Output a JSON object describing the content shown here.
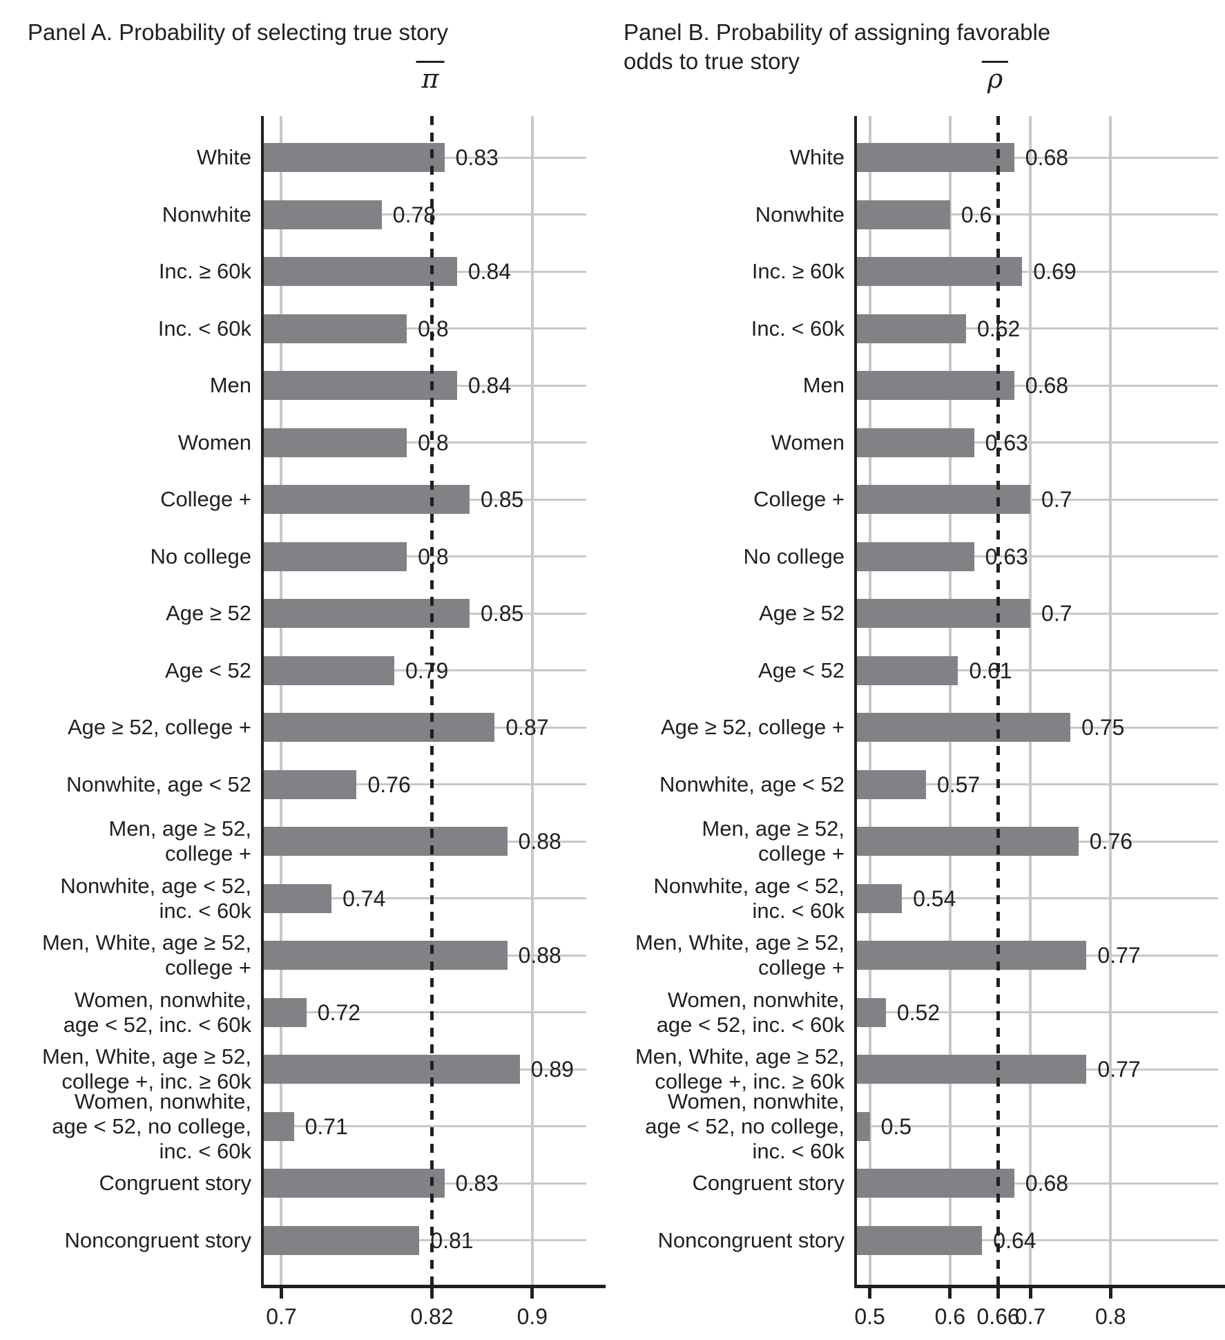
{
  "figure": {
    "panel_a_title": "Panel A. Probability of selecting true story",
    "panel_b_title": "Panel B. Probability of assigning favorable\nodds to true story",
    "pi_symbol": "π",
    "rho_symbol": "ρ"
  },
  "colors": {
    "bar": "#808285",
    "gridline": "#c7c8ca",
    "axis_text": "#231f20",
    "background": "#ffffff"
  },
  "chart_data": [
    {
      "type": "bar",
      "orientation": "horizontal",
      "title": "Panel A. Probability of selecting true story",
      "axis_symbol": "π",
      "axis_symbol_meaning": "mean probability, dashed reference line",
      "categories": [
        "White",
        "Nonwhite",
        "Inc. ≥ 60k",
        "Inc. < 60k",
        "Men",
        "Women",
        "College +",
        "No college",
        "Age ≥ 52",
        "Age < 52",
        "Age ≥ 52, college +",
        "Nonwhite, age < 52",
        "Men, age ≥ 52,\ncollege +",
        "Nonwhite, age < 52,\ninc. < 60k",
        "Men, White, age ≥ 52,\ncollege +",
        "Women, nonwhite,\nage < 52, inc. < 60k",
        "Men, White, age ≥ 52,\ncollege +, inc. ≥ 60k",
        "Women, nonwhite,\nage < 52, no college,\ninc. < 60k",
        "Congruent story",
        "Noncongruent story"
      ],
      "values": [
        0.83,
        0.78,
        0.84,
        0.8,
        0.84,
        0.8,
        0.85,
        0.8,
        0.85,
        0.79,
        0.87,
        0.76,
        0.88,
        0.74,
        0.88,
        0.72,
        0.89,
        0.71,
        0.83,
        0.81
      ],
      "value_labels": [
        "0.83",
        "0.78",
        "0.84",
        "0.8",
        "0.84",
        "0.8",
        "0.85",
        "0.8",
        "0.85",
        "0.79",
        "0.87",
        "0.76",
        "0.88",
        "0.74",
        "0.88",
        "0.72",
        "0.89",
        "0.71",
        "0.83",
        "0.81"
      ],
      "xticks": [
        {
          "value": 0.7,
          "label": "0.7"
        },
        {
          "value": 0.82,
          "label": "0.82"
        },
        {
          "value": 0.9,
          "label": "0.9"
        }
      ],
      "gridlines_x": [
        0.7,
        0.9
      ],
      "mean_line": 0.82,
      "xlim": [
        0.686,
        0.943
      ],
      "xlabel": "",
      "ylabel": "",
      "grid": true,
      "legend": false
    },
    {
      "type": "bar",
      "orientation": "horizontal",
      "title": "Panel B. Probability of assigning favorable\nodds to true story",
      "axis_symbol": "ρ",
      "axis_symbol_meaning": "mean probability, dashed reference line",
      "categories": [
        "White",
        "Nonwhite",
        "Inc. ≥ 60k",
        "Inc. < 60k",
        "Men",
        "Women",
        "College +",
        "No college",
        "Age ≥ 52",
        "Age < 52",
        "Age ≥ 52, college +",
        "Nonwhite, age < 52",
        "Men, age ≥ 52,\ncollege +",
        "Nonwhite, age < 52,\ninc. < 60k",
        "Men, White, age ≥ 52,\ncollege +",
        "Women, nonwhite,\nage < 52, inc. < 60k",
        "Men, White, age ≥ 52,\ncollege +, inc. ≥ 60k",
        "Women, nonwhite,\nage < 52, no college,\ninc. < 60k",
        "Congruent story",
        "Noncongruent story"
      ],
      "values": [
        0.68,
        0.6,
        0.69,
        0.62,
        0.68,
        0.63,
        0.7,
        0.63,
        0.7,
        0.61,
        0.75,
        0.57,
        0.76,
        0.54,
        0.77,
        0.52,
        0.77,
        0.5,
        0.68,
        0.64
      ],
      "value_labels": [
        "0.68",
        "0.6",
        "0.69",
        "0.62",
        "0.68",
        "0.63",
        "0.7",
        "0.63",
        "0.7",
        "0.61",
        "0.75",
        "0.57",
        "0.76",
        "0.54",
        "0.77",
        "0.52",
        "0.77",
        "0.5",
        "0.68",
        "0.64"
      ],
      "xticks": [
        {
          "value": 0.5,
          "label": "0.5"
        },
        {
          "value": 0.6,
          "label": "0.6"
        },
        {
          "value": 0.66,
          "label": "0.66"
        },
        {
          "value": 0.7,
          "label": "0.7"
        },
        {
          "value": 0.8,
          "label": "0.8"
        }
      ],
      "gridlines_x": [
        0.5,
        0.6,
        0.7,
        0.8
      ],
      "mean_line": 0.66,
      "xlim": [
        0.484,
        0.934
      ],
      "xlabel": "",
      "ylabel": "",
      "grid": true,
      "legend": false
    }
  ]
}
